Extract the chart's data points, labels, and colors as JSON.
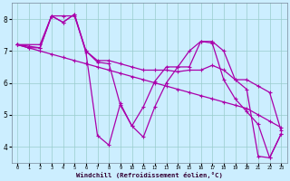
{
  "bg_color": "#cceeff",
  "line_color": "#aa00aa",
  "grid_color": "#99cccc",
  "xlabel": "Windchill (Refroidissement éolien,°C)",
  "xlim": [
    -0.5,
    23.5
  ],
  "ylim": [
    3.5,
    8.5
  ],
  "yticks": [
    4,
    5,
    6,
    7,
    8
  ],
  "xticks": [
    0,
    1,
    2,
    3,
    4,
    5,
    6,
    7,
    8,
    9,
    10,
    11,
    12,
    13,
    14,
    15,
    16,
    17,
    18,
    19,
    20,
    21,
    22,
    23
  ],
  "series1_x": [
    0,
    1,
    2,
    3,
    4,
    5,
    6,
    7,
    8,
    9,
    10,
    11,
    12,
    13,
    14,
    15,
    16,
    17,
    18,
    19,
    20,
    21,
    22,
    23
  ],
  "series1_y": [
    7.2,
    7.1,
    7.0,
    6.9,
    6.8,
    6.7,
    6.6,
    6.5,
    6.4,
    6.3,
    6.2,
    6.1,
    6.0,
    5.9,
    5.8,
    5.7,
    5.6,
    5.5,
    5.4,
    5.3,
    5.2,
    5.0,
    4.8,
    4.6
  ],
  "series2_x": [
    0,
    1,
    2,
    3,
    4,
    5,
    6,
    7,
    8,
    9,
    10,
    11,
    12,
    13,
    14,
    15,
    16,
    17,
    18,
    19,
    20,
    21,
    22,
    23
  ],
  "series2_y": [
    7.2,
    7.1,
    7.1,
    8.1,
    8.1,
    8.1,
    7.0,
    6.7,
    6.7,
    6.6,
    6.5,
    6.4,
    6.4,
    6.4,
    6.35,
    6.4,
    6.4,
    6.55,
    6.4,
    6.1,
    6.1,
    5.9,
    5.7,
    4.5
  ],
  "series3_x": [
    0,
    2,
    3,
    4,
    5,
    6,
    7,
    8,
    9,
    10,
    11,
    12,
    13,
    14,
    15,
    16,
    17,
    18,
    19,
    20,
    21,
    22,
    23
  ],
  "series3_y": [
    7.2,
    7.2,
    8.1,
    7.9,
    8.15,
    7.0,
    6.65,
    6.6,
    5.3,
    4.65,
    4.3,
    5.25,
    6.0,
    6.5,
    7.0,
    7.3,
    7.3,
    7.0,
    6.1,
    5.8,
    3.7,
    3.65,
    4.4
  ],
  "series4_x": [
    0,
    1,
    2,
    3,
    4,
    5,
    6,
    7,
    8,
    9,
    10,
    11,
    12,
    13,
    14,
    15,
    16,
    17,
    18,
    19,
    20,
    21,
    22,
    23
  ],
  "series4_y": [
    7.2,
    7.15,
    7.1,
    8.1,
    7.9,
    8.15,
    6.95,
    4.35,
    4.05,
    5.35,
    4.65,
    5.25,
    6.05,
    6.5,
    6.5,
    6.5,
    7.3,
    7.25,
    6.1,
    5.5,
    5.1,
    4.7,
    3.65,
    4.4
  ]
}
